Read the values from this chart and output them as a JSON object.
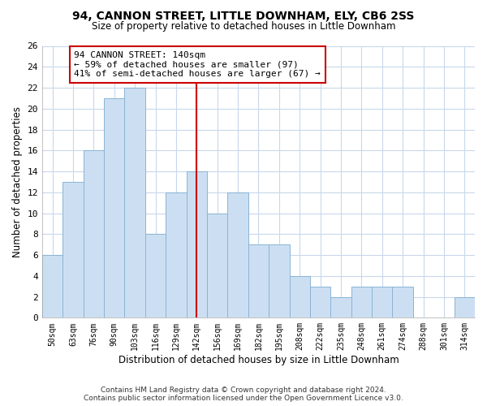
{
  "title": "94, CANNON STREET, LITTLE DOWNHAM, ELY, CB6 2SS",
  "subtitle": "Size of property relative to detached houses in Little Downham",
  "xlabel": "Distribution of detached houses by size in Little Downham",
  "ylabel": "Number of detached properties",
  "bar_labels": [
    "50sqm",
    "63sqm",
    "76sqm",
    "90sqm",
    "103sqm",
    "116sqm",
    "129sqm",
    "142sqm",
    "156sqm",
    "169sqm",
    "182sqm",
    "195sqm",
    "208sqm",
    "222sqm",
    "235sqm",
    "248sqm",
    "261sqm",
    "274sqm",
    "288sqm",
    "301sqm",
    "314sqm"
  ],
  "bar_values": [
    6,
    13,
    16,
    21,
    22,
    8,
    12,
    14,
    10,
    12,
    7,
    7,
    4,
    3,
    2,
    3,
    3,
    3,
    0,
    0,
    2
  ],
  "bar_color": "#ccdff2",
  "bar_edge_color": "#8ab4d4",
  "vline_index": 7,
  "annotation_text_line1": "94 CANNON STREET: 140sqm",
  "annotation_text_line2": "← 59% of detached houses are smaller (97)",
  "annotation_text_line3": "41% of semi-detached houses are larger (67) →",
  "annotation_box_color": "#ffffff",
  "annotation_box_edge_color": "#cc0000",
  "vline_color": "#cc0000",
  "ylim": [
    0,
    26
  ],
  "yticks": [
    0,
    2,
    4,
    6,
    8,
    10,
    12,
    14,
    16,
    18,
    20,
    22,
    24,
    26
  ],
  "footer_line1": "Contains HM Land Registry data © Crown copyright and database right 2024.",
  "footer_line2": "Contains public sector information licensed under the Open Government Licence v3.0.",
  "bg_color": "#ffffff",
  "grid_color": "#c8d8ec"
}
